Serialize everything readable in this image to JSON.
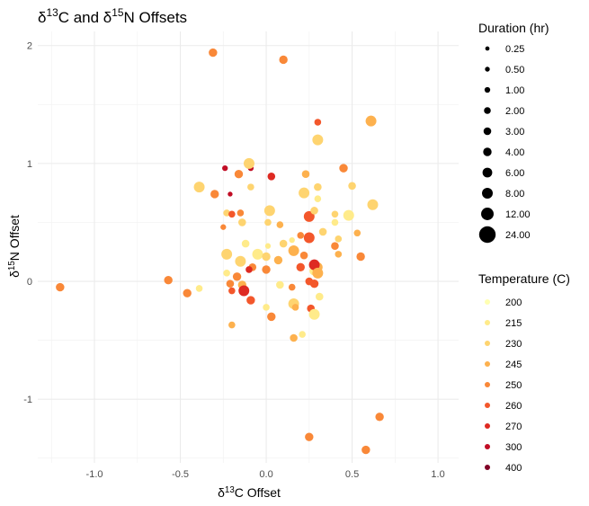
{
  "chart_data": {
    "type": "scatter",
    "title": "δ13C and δ15N Offsets",
    "title_parts": [
      {
        "t": "δ",
        "sup": false
      },
      {
        "t": "13",
        "sup": true
      },
      {
        "t": "C and δ",
        "sup": false
      },
      {
        "t": "15",
        "sup": true
      },
      {
        "t": "N Offsets",
        "sup": false
      }
    ],
    "xlabel": "δ13C Offset",
    "xlabel_parts": [
      {
        "t": "δ",
        "sup": false
      },
      {
        "t": "13",
        "sup": true
      },
      {
        "t": "C Offset",
        "sup": false
      }
    ],
    "ylabel": "δ15N Offset",
    "ylabel_parts": [
      {
        "t": "δ",
        "sup": false
      },
      {
        "t": "15",
        "sup": true
      },
      {
        "t": "N Offset",
        "sup": false
      }
    ],
    "xlim": [
      -1.33,
      1.12
    ],
    "ylim": [
      -1.54,
      2.12
    ],
    "x_ticks": [
      -1.0,
      -0.5,
      0.0,
      0.5,
      1.0
    ],
    "x_tick_labels": [
      "-1.0",
      "-0.5",
      "0.0",
      "0.5",
      "1.0"
    ],
    "y_ticks": [
      -1,
      0,
      1,
      2
    ],
    "y_tick_labels": [
      "-1",
      "0",
      "1",
      "2"
    ],
    "grid": true,
    "size_legend": {
      "title": "Duration (hr)",
      "entries": [
        {
          "label": "0.25",
          "value": 0.25
        },
        {
          "label": "0.50",
          "value": 0.5
        },
        {
          "label": "1.00",
          "value": 1
        },
        {
          "label": "2.00",
          "value": 2
        },
        {
          "label": "3.00",
          "value": 3
        },
        {
          "label": "4.00",
          "value": 4
        },
        {
          "label": "6.00",
          "value": 6
        },
        {
          "label": "8.00",
          "value": 8
        },
        {
          "label": "12.00",
          "value": 12
        },
        {
          "label": "24.00",
          "value": 24
        }
      ]
    },
    "color_legend": {
      "title": "Temperature (C)",
      "entries": [
        {
          "label": "200",
          "value": 200,
          "color": "#ffffb2"
        },
        {
          "label": "215",
          "value": 215,
          "color": "#ffeb8a"
        },
        {
          "label": "230",
          "value": 230,
          "color": "#fed470"
        },
        {
          "label": "245",
          "value": 245,
          "color": "#fdb14e"
        },
        {
          "label": "250",
          "value": 250,
          "color": "#f98838"
        },
        {
          "label": "260",
          "value": 260,
          "color": "#f3572b"
        },
        {
          "label": "270",
          "value": 270,
          "color": "#de2a22"
        },
        {
          "label": "300",
          "value": 300,
          "color": "#c10d25"
        },
        {
          "label": "400",
          "value": 400,
          "color": "#800026"
        }
      ]
    },
    "series": [
      {
        "x": -0.31,
        "y": 1.94,
        "temp": 250,
        "dur": 4
      },
      {
        "x": 0.1,
        "y": 1.88,
        "temp": 250,
        "dur": 4
      },
      {
        "x": 0.3,
        "y": 1.35,
        "temp": 260,
        "dur": 2
      },
      {
        "x": 0.61,
        "y": 1.36,
        "temp": 245,
        "dur": 8
      },
      {
        "x": 0.3,
        "y": 1.2,
        "temp": 230,
        "dur": 8
      },
      {
        "x": -0.24,
        "y": 0.96,
        "temp": 300,
        "dur": 1
      },
      {
        "x": -0.09,
        "y": 0.96,
        "temp": 300,
        "dur": 1
      },
      {
        "x": -0.1,
        "y": 1.0,
        "temp": 230,
        "dur": 8
      },
      {
        "x": -0.16,
        "y": 0.91,
        "temp": 250,
        "dur": 4
      },
      {
        "x": 0.03,
        "y": 0.89,
        "temp": 270,
        "dur": 3
      },
      {
        "x": 0.45,
        "y": 0.96,
        "temp": 250,
        "dur": 4
      },
      {
        "x": 0.23,
        "y": 0.91,
        "temp": 245,
        "dur": 3
      },
      {
        "x": -0.39,
        "y": 0.8,
        "temp": 230,
        "dur": 8
      },
      {
        "x": -0.3,
        "y": 0.74,
        "temp": 250,
        "dur": 4
      },
      {
        "x": -0.09,
        "y": 0.8,
        "temp": 230,
        "dur": 2
      },
      {
        "x": -0.21,
        "y": 0.74,
        "temp": 300,
        "dur": 0.5
      },
      {
        "x": 0.3,
        "y": 0.8,
        "temp": 230,
        "dur": 3
      },
      {
        "x": 0.5,
        "y": 0.81,
        "temp": 230,
        "dur": 3
      },
      {
        "x": 0.22,
        "y": 0.75,
        "temp": 230,
        "dur": 8
      },
      {
        "x": 0.62,
        "y": 0.65,
        "temp": 230,
        "dur": 8
      },
      {
        "x": 0.3,
        "y": 0.7,
        "temp": 215,
        "dur": 2
      },
      {
        "x": 0.48,
        "y": 0.56,
        "temp": 215,
        "dur": 8
      },
      {
        "x": -0.23,
        "y": 0.58,
        "temp": 230,
        "dur": 2
      },
      {
        "x": -0.2,
        "y": 0.57,
        "temp": 260,
        "dur": 2
      },
      {
        "x": -0.15,
        "y": 0.58,
        "temp": 250,
        "dur": 2
      },
      {
        "x": 0.02,
        "y": 0.6,
        "temp": 230,
        "dur": 8
      },
      {
        "x": 0.25,
        "y": 0.55,
        "temp": 260,
        "dur": 8
      },
      {
        "x": 0.28,
        "y": 0.6,
        "temp": 230,
        "dur": 3
      },
      {
        "x": 0.4,
        "y": 0.57,
        "temp": 230,
        "dur": 2
      },
      {
        "x": -0.25,
        "y": 0.46,
        "temp": 250,
        "dur": 1
      },
      {
        "x": -0.14,
        "y": 0.5,
        "temp": 230,
        "dur": 3
      },
      {
        "x": 0.01,
        "y": 0.5,
        "temp": 230,
        "dur": 2
      },
      {
        "x": 0.08,
        "y": 0.48,
        "temp": 245,
        "dur": 2
      },
      {
        "x": 0.4,
        "y": 0.5,
        "temp": 215,
        "dur": 2
      },
      {
        "x": -0.12,
        "y": 0.32,
        "temp": 215,
        "dur": 3
      },
      {
        "x": 0.01,
        "y": 0.3,
        "temp": 215,
        "dur": 1
      },
      {
        "x": 0.1,
        "y": 0.32,
        "temp": 230,
        "dur": 3
      },
      {
        "x": 0.15,
        "y": 0.35,
        "temp": 215,
        "dur": 1
      },
      {
        "x": 0.2,
        "y": 0.39,
        "temp": 250,
        "dur": 2
      },
      {
        "x": 0.25,
        "y": 0.37,
        "temp": 260,
        "dur": 8
      },
      {
        "x": 0.33,
        "y": 0.42,
        "temp": 230,
        "dur": 3
      },
      {
        "x": 0.4,
        "y": 0.3,
        "temp": 250,
        "dur": 3
      },
      {
        "x": 0.42,
        "y": 0.36,
        "temp": 230,
        "dur": 2
      },
      {
        "x": 0.53,
        "y": 0.41,
        "temp": 245,
        "dur": 2
      },
      {
        "x": -0.23,
        "y": 0.23,
        "temp": 230,
        "dur": 8
      },
      {
        "x": -0.05,
        "y": 0.23,
        "temp": 215,
        "dur": 8
      },
      {
        "x": 0.0,
        "y": 0.21,
        "temp": 230,
        "dur": 4
      },
      {
        "x": 0.07,
        "y": 0.18,
        "temp": 245,
        "dur": 4
      },
      {
        "x": 0.16,
        "y": 0.26,
        "temp": 245,
        "dur": 8
      },
      {
        "x": 0.22,
        "y": 0.22,
        "temp": 250,
        "dur": 3
      },
      {
        "x": 0.42,
        "y": 0.23,
        "temp": 245,
        "dur": 2
      },
      {
        "x": 0.55,
        "y": 0.21,
        "temp": 250,
        "dur": 4
      },
      {
        "x": -0.15,
        "y": 0.17,
        "temp": 230,
        "dur": 8
      },
      {
        "x": -0.08,
        "y": 0.12,
        "temp": 250,
        "dur": 3
      },
      {
        "x": 0.0,
        "y": 0.1,
        "temp": 250,
        "dur": 4
      },
      {
        "x": 0.2,
        "y": 0.12,
        "temp": 260,
        "dur": 4
      },
      {
        "x": 0.3,
        "y": 0.12,
        "temp": 245,
        "dur": 6
      },
      {
        "x": 0.28,
        "y": 0.09,
        "temp": 215,
        "dur": 6
      },
      {
        "x": -0.23,
        "y": 0.07,
        "temp": 215,
        "dur": 2
      },
      {
        "x": -0.17,
        "y": 0.04,
        "temp": 250,
        "dur": 4
      },
      {
        "x": -0.1,
        "y": 0.1,
        "temp": 270,
        "dur": 2
      },
      {
        "x": 0.28,
        "y": 0.14,
        "temp": 270,
        "dur": 8
      },
      {
        "x": 0.3,
        "y": 0.07,
        "temp": 245,
        "dur": 8
      },
      {
        "x": -1.2,
        "y": -0.05,
        "temp": 250,
        "dur": 4
      },
      {
        "x": -0.57,
        "y": 0.01,
        "temp": 250,
        "dur": 4
      },
      {
        "x": -0.46,
        "y": -0.1,
        "temp": 250,
        "dur": 4
      },
      {
        "x": -0.39,
        "y": -0.06,
        "temp": 215,
        "dur": 2
      },
      {
        "x": -0.21,
        "y": -0.02,
        "temp": 250,
        "dur": 3
      },
      {
        "x": -0.2,
        "y": -0.08,
        "temp": 260,
        "dur": 2
      },
      {
        "x": -0.14,
        "y": -0.03,
        "temp": 245,
        "dur": 4
      },
      {
        "x": -0.13,
        "y": -0.08,
        "temp": 270,
        "dur": 8
      },
      {
        "x": -0.09,
        "y": -0.16,
        "temp": 260,
        "dur": 4
      },
      {
        "x": 0.08,
        "y": -0.03,
        "temp": 215,
        "dur": 3
      },
      {
        "x": 0.15,
        "y": -0.05,
        "temp": 250,
        "dur": 2
      },
      {
        "x": 0.25,
        "y": 0.0,
        "temp": 260,
        "dur": 3
      },
      {
        "x": 0.28,
        "y": -0.02,
        "temp": 260,
        "dur": 4
      },
      {
        "x": 0.31,
        "y": -0.13,
        "temp": 215,
        "dur": 3
      },
      {
        "x": 0.16,
        "y": -0.19,
        "temp": 230,
        "dur": 8
      },
      {
        "x": 0.0,
        "y": -0.22,
        "temp": 215,
        "dur": 2
      },
      {
        "x": 0.03,
        "y": -0.3,
        "temp": 250,
        "dur": 4
      },
      {
        "x": 0.17,
        "y": -0.22,
        "temp": 245,
        "dur": 2
      },
      {
        "x": 0.26,
        "y": -0.23,
        "temp": 260,
        "dur": 3
      },
      {
        "x": 0.28,
        "y": -0.28,
        "temp": 215,
        "dur": 8
      },
      {
        "x": -0.2,
        "y": -0.37,
        "temp": 245,
        "dur": 2
      },
      {
        "x": 0.16,
        "y": -0.48,
        "temp": 245,
        "dur": 3
      },
      {
        "x": 0.21,
        "y": -0.45,
        "temp": 215,
        "dur": 2
      },
      {
        "x": 0.25,
        "y": -1.32,
        "temp": 250,
        "dur": 4
      },
      {
        "x": 0.66,
        "y": -1.15,
        "temp": 250,
        "dur": 4
      },
      {
        "x": 0.58,
        "y": -1.43,
        "temp": 250,
        "dur": 4
      }
    ]
  }
}
